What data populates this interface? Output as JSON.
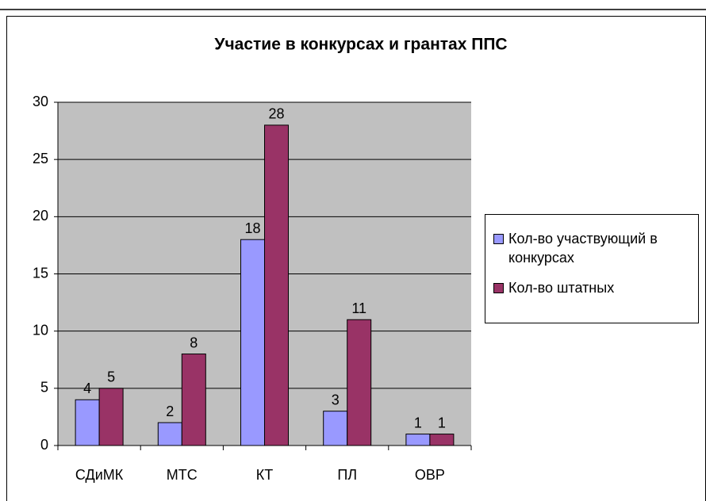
{
  "chart_data": {
    "type": "bar",
    "title": "Участие в конкурсах и грантах ППС",
    "categories": [
      "СДиМК",
      "МТС",
      "КТ",
      "ПЛ",
      "ОВР"
    ],
    "series": [
      {
        "name": "Кол-во участвующий в конкурсах",
        "color": "#9999ff",
        "values": [
          4,
          2,
          18,
          3,
          1
        ]
      },
      {
        "name": "Кол-во штатных",
        "color": "#993366",
        "values": [
          5,
          8,
          28,
          11,
          1
        ]
      }
    ],
    "ylim": [
      0,
      30
    ],
    "yticks": [
      0,
      5,
      10,
      15,
      20,
      25,
      30
    ],
    "grid": true,
    "legend": "right"
  }
}
